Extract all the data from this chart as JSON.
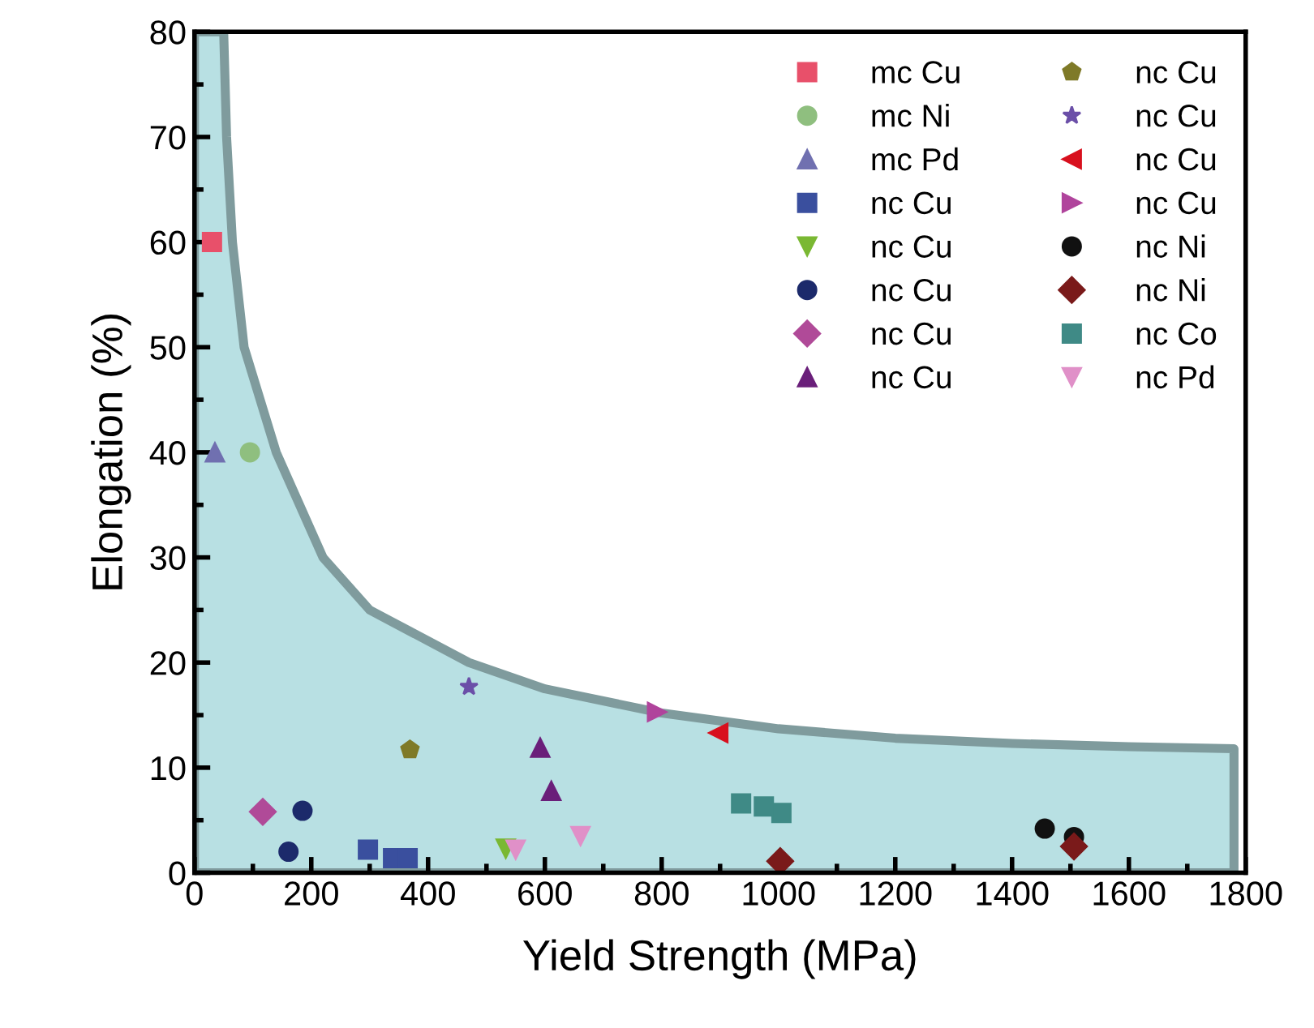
{
  "chart_data": {
    "type": "scatter",
    "xlabel": "Yield Strength (MPa)",
    "ylabel": "Elongation (%)",
    "xlim": [
      0,
      1800
    ],
    "ylim": [
      0,
      80
    ],
    "xticks": [
      0,
      200,
      400,
      600,
      800,
      1000,
      1200,
      1400,
      1600,
      1800
    ],
    "yticks": [
      0,
      10,
      20,
      30,
      40,
      50,
      60,
      70,
      80
    ],
    "grid": false,
    "legend": "top right",
    "series": [
      {
        "type": "area",
        "color": "#b8e0e3",
        "x": [
          0,
          50,
          55,
          65,
          85,
          140,
          220,
          300,
          470,
          600,
          800,
          1000,
          1200,
          1400,
          1600,
          1780
        ],
        "values": [
          80,
          80,
          70,
          60,
          50,
          40,
          30,
          25,
          20,
          17.5,
          15.2,
          13.7,
          12.8,
          12.3,
          12,
          11.8
        ]
      },
      {
        "name": "mc Cu",
        "color": "#e8506a",
        "marker": "square",
        "x": [
          30
        ],
        "values": [
          60
        ]
      },
      {
        "name": "mc Ni",
        "color": "#8fbf7f",
        "marker": "circle",
        "x": [
          95
        ],
        "values": [
          40
        ]
      },
      {
        "name": "mc Pd",
        "color": "#7070b0",
        "marker": "triangle",
        "x": [
          35
        ],
        "values": [
          40
        ]
      },
      {
        "name": "nc Cu",
        "color": "#3a4f9e",
        "marker": "square",
        "x": [
          297,
          340,
          365
        ],
        "values": [
          2.2,
          1.4,
          1.4
        ]
      },
      {
        "name": "nc Cu",
        "color": "#7ab833",
        "marker": "triangle_down",
        "x": [
          533
        ],
        "values": [
          2.3
        ]
      },
      {
        "name": "nc Cu",
        "color": "#1c2a6b",
        "marker": "circle",
        "x": [
          185,
          161
        ],
        "values": [
          5.9,
          2.0
        ]
      },
      {
        "name": "nc Cu",
        "color": "#b04a98",
        "marker": "diamond",
        "x": [
          117
        ],
        "values": [
          5.8
        ]
      },
      {
        "name": "nc Cu",
        "color": "#6a1f7a",
        "marker": "triangle",
        "x": [
          592,
          611
        ],
        "values": [
          11.9,
          7.8
        ]
      },
      {
        "name": "nc Cu",
        "color": "#7f7a28",
        "x": [
          369
        ],
        "values": [
          11.7
        ]
      },
      {
        "name": "nc Cu",
        "color": "#6b4fa8",
        "marker": "star",
        "x": [
          470
        ],
        "values": [
          17.7
        ]
      },
      {
        "name": "nc Cu",
        "color": "#d8101e",
        "marker": "triangle_left",
        "x": [
          897
        ],
        "values": [
          13.3
        ]
      },
      {
        "name": "nc Cu",
        "color": "#b0449c",
        "marker": "triangle_right",
        "x": [
          792
        ],
        "values": [
          15.3
        ]
      },
      {
        "name": "nc Ni",
        "color": "#111111",
        "marker": "circle",
        "x": [
          1456,
          1506
        ],
        "values": [
          4.2,
          3.4
        ]
      },
      {
        "name": "nc Ni",
        "color": "#7a1a1a",
        "marker": "diamond",
        "x": [
          1003,
          1506
        ],
        "values": [
          1.1,
          2.5
        ]
      },
      {
        "name": "nc Co",
        "color": "#3f8a86",
        "marker": "square",
        "x": [
          936,
          975,
          1005
        ],
        "values": [
          6.6,
          6.3,
          5.7
        ]
      },
      {
        "name": "nc Pd",
        "color": "#e090c8",
        "marker": "triangle_down",
        "x": [
          550,
          661
        ],
        "values": [
          2.2,
          3.5
        ]
      }
    ]
  }
}
